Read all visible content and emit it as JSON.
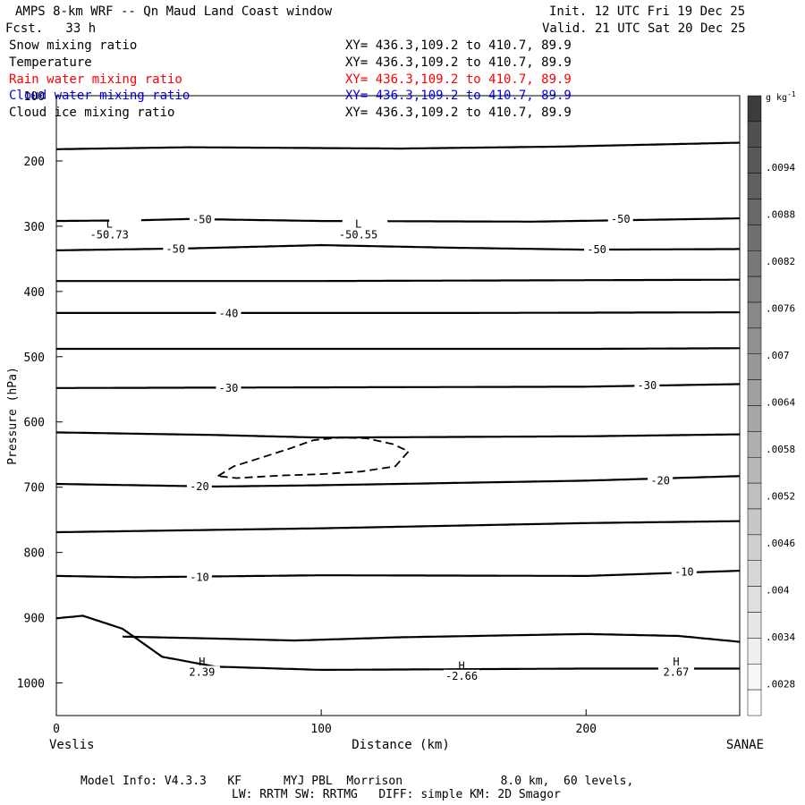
{
  "header": {
    "title": "AMPS 8-km WRF -- Qn Maud Land Coast window",
    "init": "Init. 12 UTC Fri 19 Dec 25",
    "forecast": "Fcst.   33 h",
    "valid": "Valid. 21 UTC Sat 20 Dec 25"
  },
  "legend": [
    {
      "label": "Snow mixing ratio",
      "xy": "XY= 436.3,109.2 to 410.7, 89.9",
      "color": "#000000"
    },
    {
      "label": "Temperature",
      "xy": "XY= 436.3,109.2 to 410.7, 89.9",
      "color": "#000000"
    },
    {
      "label": "Rain water mixing ratio",
      "xy": "XY= 436.3,109.2 to 410.7, 89.9",
      "color": "#ff0000"
    },
    {
      "label": "Cloud water mixing ratio",
      "xy": "XY= 436.3,109.2 to 410.7, 89.9",
      "color": "#0000ff"
    },
    {
      "label": "Cloud ice mixing ratio",
      "xy": "XY= 436.3,109.2 to 410.7, 89.9",
      "color": "#000000"
    }
  ],
  "footer": {
    "line1": "Model Info: V4.3.3   KF      MYJ PBL  Morrison              8.0 km,  60 levels,",
    "line2": "LW: RRTM SW: RRTMG   DIFF: simple KM: 2D Smagor"
  },
  "chart_data": {
    "type": "contour cross-section",
    "xlabel": "Distance (km)",
    "ylabel": "Pressure (hPa)",
    "xlim": [
      0,
      258
    ],
    "ylim": [
      1050,
      100
    ],
    "xticks": [
      0,
      100,
      200
    ],
    "yticks": [
      100,
      200,
      300,
      400,
      500,
      600,
      700,
      800,
      900,
      1000
    ],
    "x_endpoints": {
      "left": "Veslis",
      "right": "SANAE"
    },
    "colorbar": {
      "unit": "g kg",
      "unit_exponent": "-1",
      "ticks": [
        ".0094",
        ".0088",
        ".0082",
        ".0076",
        ".007",
        ".0064",
        ".0058",
        ".0052",
        ".0046",
        ".004",
        ".0034",
        ".0028"
      ]
    },
    "isotherms": [
      {
        "points": [
          [
            0,
            182
          ],
          [
            50,
            179
          ],
          [
            130,
            181
          ],
          [
            190,
            178
          ],
          [
            258,
            172
          ]
        ]
      },
      {
        "points": [
          [
            0,
            292
          ],
          [
            30,
            291
          ],
          [
            50,
            289
          ],
          [
            100,
            292
          ],
          [
            180,
            293
          ],
          [
            258,
            288
          ]
        ],
        "gaps": [
          [
            20,
            32
          ],
          [
            108,
            125
          ]
        ]
      },
      {
        "points": [
          [
            0,
            337
          ],
          [
            50,
            334
          ],
          [
            100,
            329
          ],
          [
            150,
            333
          ],
          [
            200,
            336
          ],
          [
            258,
            335
          ]
        ]
      },
      {
        "points": [
          [
            0,
            384
          ],
          [
            100,
            384
          ],
          [
            258,
            382
          ]
        ]
      },
      {
        "points": [
          [
            0,
            433
          ],
          [
            70,
            433
          ],
          [
            150,
            433
          ],
          [
            258,
            432
          ]
        ]
      },
      {
        "points": [
          [
            0,
            488
          ],
          [
            100,
            488
          ],
          [
            200,
            488
          ],
          [
            258,
            487
          ]
        ]
      },
      {
        "points": [
          [
            0,
            548
          ],
          [
            100,
            547
          ],
          [
            200,
            546
          ],
          [
            258,
            542
          ]
        ]
      },
      {
        "points": [
          [
            0,
            616
          ],
          [
            60,
            620
          ],
          [
            100,
            624
          ],
          [
            200,
            622
          ],
          [
            258,
            619
          ]
        ]
      },
      {
        "points": [
          [
            0,
            695
          ],
          [
            60,
            699
          ],
          [
            100,
            697
          ],
          [
            200,
            690
          ],
          [
            258,
            683
          ]
        ]
      },
      {
        "points": [
          [
            0,
            769
          ],
          [
            100,
            763
          ],
          [
            200,
            755
          ],
          [
            258,
            752
          ]
        ]
      },
      {
        "points": [
          [
            0,
            836
          ],
          [
            30,
            838
          ],
          [
            100,
            835
          ],
          [
            200,
            836
          ],
          [
            258,
            828
          ]
        ]
      },
      {
        "points": [
          [
            25,
            929
          ],
          [
            60,
            932
          ],
          [
            90,
            935
          ],
          [
            130,
            930
          ],
          [
            200,
            925
          ],
          [
            235,
            928
          ],
          [
            258,
            937
          ]
        ]
      },
      {
        "points": [
          [
            0,
            901
          ],
          [
            10,
            897
          ],
          [
            25,
            917
          ],
          [
            40,
            960
          ],
          [
            60,
            975
          ],
          [
            100,
            980
          ],
          [
            200,
            978
          ],
          [
            258,
            978
          ]
        ]
      }
    ],
    "contour_labels": [
      {
        "text": "-50",
        "x": 55,
        "y": 290
      },
      {
        "text": "-50",
        "x": 45,
        "y": 335
      },
      {
        "text": "-50",
        "x": 213,
        "y": 289
      },
      {
        "text": "-50",
        "x": 204,
        "y": 336
      },
      {
        "text": "-40",
        "x": 65,
        "y": 434
      },
      {
        "text": "-30",
        "x": 65,
        "y": 548
      },
      {
        "text": "-30",
        "x": 223,
        "y": 544
      },
      {
        "text": "-20",
        "x": 54,
        "y": 699
      },
      {
        "text": "-20",
        "x": 228,
        "y": 690
      },
      {
        "text": "-10",
        "x": 54,
        "y": 838
      },
      {
        "text": "-10",
        "x": 237,
        "y": 830
      }
    ],
    "extrema": [
      {
        "mark": "L",
        "value": "-50.73",
        "x": 20
      },
      {
        "mark": "L",
        "value": "-50.55",
        "x": 114
      },
      {
        "mark": "H",
        "value": "2.39",
        "x": 55
      },
      {
        "mark": "H",
        "value": "-2.66",
        "x": 153
      },
      {
        "mark": "H",
        "value": "2.67",
        "x": 234
      }
    ],
    "dashed_contour": {
      "points": [
        [
          61,
          683
        ],
        [
          67,
          668
        ],
        [
          78,
          654
        ],
        [
          88,
          641
        ],
        [
          97,
          628
        ],
        [
          107,
          624
        ],
        [
          117,
          625
        ],
        [
          127,
          634
        ],
        [
          133,
          645
        ],
        [
          128,
          668
        ],
        [
          115,
          676
        ],
        [
          100,
          680
        ],
        [
          85,
          682
        ],
        [
          68,
          686
        ],
        [
          61,
          683
        ]
      ]
    }
  }
}
